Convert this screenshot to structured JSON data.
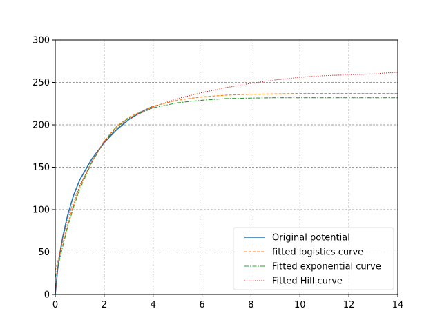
{
  "chart_data": {
    "type": "line",
    "title": "",
    "xlabel": "",
    "ylabel": "",
    "xlim": [
      0,
      14
    ],
    "ylim": [
      0,
      300
    ],
    "xticks": [
      0,
      2,
      4,
      6,
      8,
      10,
      12,
      14
    ],
    "yticks": [
      0,
      50,
      100,
      150,
      200,
      250,
      300
    ],
    "grid": true,
    "legend_position": "lower-right",
    "series": [
      {
        "name": "Original potential",
        "color": "#1f77b4",
        "style": "solid",
        "x": [
          0,
          0.1,
          0.2,
          0.3,
          0.5,
          0.75,
          1,
          1.5,
          2,
          2.5,
          3,
          3.5,
          4
        ],
        "y": [
          0,
          30,
          50,
          67,
          93,
          117,
          135,
          160,
          179,
          194,
          206,
          215,
          222
        ]
      },
      {
        "name": "fitted logistics curve",
        "color": "#ff7f0e",
        "style": "dashed",
        "x": [
          0,
          0.25,
          0.5,
          0.75,
          1,
          1.5,
          2,
          2.5,
          3,
          4,
          5,
          6,
          7,
          8,
          9,
          10,
          11,
          12,
          13,
          14
        ],
        "y": [
          28,
          55,
          82,
          106,
          127,
          157,
          181,
          198,
          209,
          222,
          229,
          233,
          235,
          236,
          236.5,
          237,
          237,
          237,
          237,
          237
        ]
      },
      {
        "name": "Fitted exponential curve",
        "color": "#2ca02c",
        "style": "dashdot",
        "x": [
          0,
          0.25,
          0.5,
          0.75,
          1,
          1.5,
          2,
          2.5,
          3,
          4,
          5,
          6,
          7,
          8,
          9,
          10,
          11,
          12,
          13,
          14
        ],
        "y": [
          20,
          50,
          79,
          103,
          124,
          156,
          180,
          197,
          208,
          220,
          226,
          229,
          231,
          231.5,
          232,
          232,
          232,
          232,
          232,
          232
        ]
      },
      {
        "name": "Fitted Hill curve",
        "color": "#d62728",
        "style": "dotted",
        "x": [
          0,
          0.1,
          0.25,
          0.5,
          0.75,
          1,
          1.5,
          2,
          2.5,
          3,
          4,
          5,
          6,
          7,
          8,
          9,
          10,
          11,
          12,
          13,
          14
        ],
        "y": [
          0,
          35,
          60,
          88,
          110,
          128,
          157,
          180,
          195,
          207,
          221,
          231,
          238,
          244,
          249,
          253,
          256,
          258,
          259,
          260,
          262
        ]
      }
    ]
  }
}
